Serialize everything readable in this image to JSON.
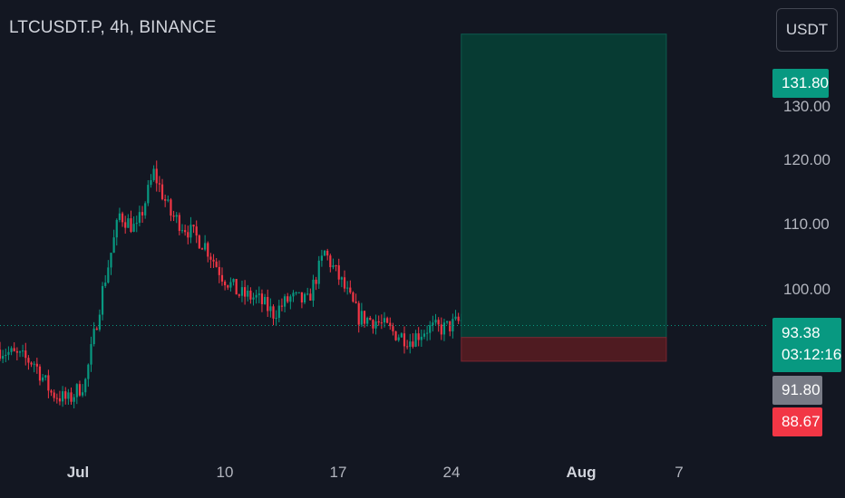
{
  "header": {
    "symbol_title": "LTCUSDT.P, 4h, BINANCE",
    "currency_button": "USDT"
  },
  "colors": {
    "background": "#131722",
    "up": "#089981",
    "down": "#f23645",
    "target_zone": "#073b33",
    "stop_zone": "#4f1b21",
    "entry_badge": "#787b86"
  },
  "price_axis": {
    "ticks": [
      "100.00",
      "110.00",
      "120.00"
    ],
    "partially_hidden_tick": "130.00"
  },
  "time_axis": {
    "labels": [
      {
        "text": "Jul",
        "bold": true
      },
      {
        "text": "10",
        "bold": false
      },
      {
        "text": "17",
        "bold": false
      },
      {
        "text": "24",
        "bold": false
      },
      {
        "text": "Aug",
        "bold": true
      },
      {
        "text": "7",
        "bold": false
      }
    ]
  },
  "badges": {
    "target": "131.80",
    "last_price": "93.38",
    "countdown": "03:12:16",
    "entry": "91.80",
    "stop": "88.67"
  },
  "chart_data": {
    "type": "candlestick",
    "symbol": "LTCUSDT.P",
    "interval": "4h",
    "exchange": "BINANCE",
    "quote": "USDT",
    "ylim": [
      76.6,
      136.3
    ],
    "xlim": [
      "2024-06-25",
      "2024-08-09"
    ],
    "last_price": 93.38,
    "position": {
      "type": "long",
      "entry": 91.8,
      "target": 131.8,
      "stop": 88.67,
      "start": "2024-07-22",
      "end": "2024-08-03"
    },
    "price_path": [
      [
        "2024-06-25",
        90.2
      ],
      [
        "2024-06-27",
        88.5
      ],
      [
        "2024-06-28",
        84.5
      ],
      [
        "2024-06-29",
        83.5
      ],
      [
        "2024-06-30",
        86.0
      ],
      [
        "2024-07-01",
        98.0
      ],
      [
        "2024-07-02",
        108.0
      ],
      [
        "2024-07-03",
        106.0
      ],
      [
        "2024-07-04",
        113.5
      ],
      [
        "2024-07-05",
        108.0
      ],
      [
        "2024-07-06",
        106.0
      ],
      [
        "2024-07-07",
        104.0
      ],
      [
        "2024-07-08",
        100.0
      ],
      [
        "2024-07-09",
        97.5
      ],
      [
        "2024-07-10",
        97.0
      ],
      [
        "2024-07-11",
        95.0
      ],
      [
        "2024-07-12",
        97.0
      ],
      [
        "2024-07-13",
        96.5
      ],
      [
        "2024-07-14",
        103.0
      ],
      [
        "2024-07-15",
        99.0
      ],
      [
        "2024-07-16",
        94.5
      ],
      [
        "2024-07-17",
        94.0
      ],
      [
        "2024-07-18",
        92.5
      ],
      [
        "2024-07-19",
        91.5
      ],
      [
        "2024-07-20",
        93.0
      ],
      [
        "2024-07-21",
        93.0
      ],
      [
        "2024-07-22",
        94.0
      ],
      [
        "2024-07-22",
        93.38
      ]
    ]
  }
}
